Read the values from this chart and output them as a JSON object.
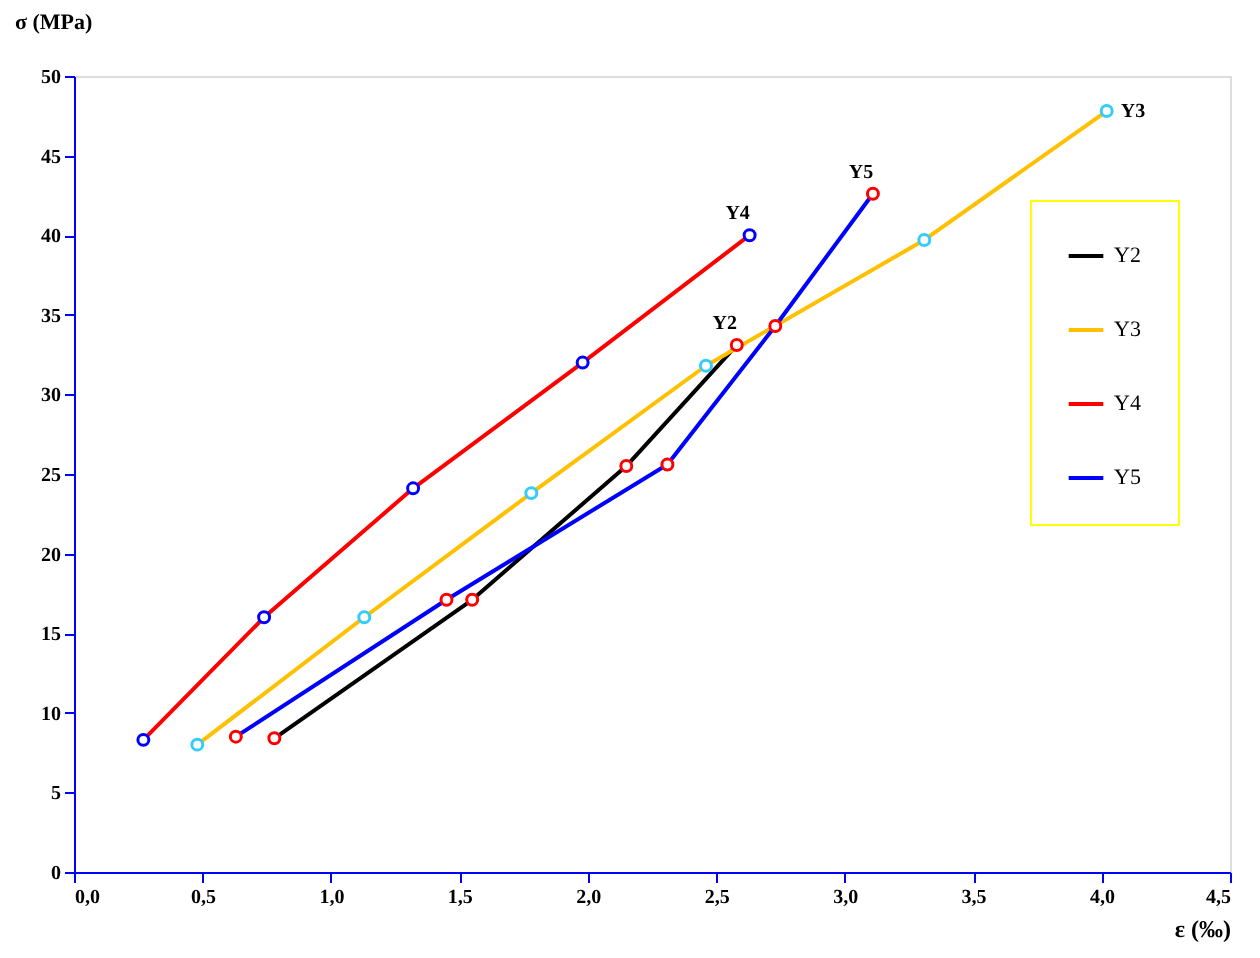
{
  "chart_data": {
    "type": "line",
    "ylabel": "σ (MPa)",
    "xlabel": "ε (‰)",
    "series": [
      {
        "name": "Y2",
        "color": "#000000",
        "colors": [
          "#ff0000",
          "#ff0000",
          "#ff0000",
          "#ff0000"
        ],
        "x": [
          0.78,
          1.55,
          2.15,
          2.58
        ],
        "values": [
          8.4,
          17.1,
          25.5,
          33.1
        ]
      },
      {
        "name": "Y3",
        "color": "#ffc000",
        "colors": [
          "#33ccff",
          "#33ccff",
          "#33ccff",
          "#33ccff",
          "#33ccff",
          "#33ccff"
        ],
        "x": [
          0.48,
          1.13,
          1.78,
          2.46,
          3.31,
          4.02
        ],
        "values": [
          8.0,
          16.0,
          23.8,
          31.8,
          39.7,
          47.8
        ]
      },
      {
        "name": "Y4",
        "color": "#ff0000",
        "colors": [
          "#0000ff",
          "#0000ff",
          "#0000ff",
          "#0000ff",
          "#0000ff"
        ],
        "x": [
          0.27,
          0.74,
          1.32,
          1.98,
          2.63
        ],
        "values": [
          8.3,
          16.0,
          24.1,
          32.0,
          40.0
        ]
      },
      {
        "name": "Y5",
        "color": "#0000ff",
        "colors": [
          "#ff0000",
          "#ff0000",
          "#ff0000",
          "#ff0000",
          "#ff0000"
        ],
        "x": [
          0.63,
          1.45,
          2.31,
          2.73,
          3.11
        ],
        "values": [
          8.5,
          17.1,
          25.6,
          34.3,
          42.6
        ]
      }
    ],
    "annotations": [
      {
        "text": "Y4",
        "x": 2.63,
        "y": 40.0
      },
      {
        "text": "Y2",
        "x": 2.58,
        "y": 33.1
      },
      {
        "text": "Y5",
        "x": 3.11,
        "y": 42.6
      },
      {
        "text": "Y3",
        "x": 4.02,
        "y": 47.8
      }
    ],
    "xlim": [
      0,
      4.5
    ],
    "ylim": [
      0,
      50
    ],
    "xticks": [
      {
        "value": 0,
        "label": "0,0"
      },
      {
        "value": 0.5,
        "label": "0,5"
      },
      {
        "value": 1,
        "label": "1,0"
      },
      {
        "value": 1.5,
        "label": "1,5"
      },
      {
        "value": 2,
        "label": "2,0"
      },
      {
        "value": 2.5,
        "label": "2,5"
      },
      {
        "value": 3,
        "label": "3,0"
      },
      {
        "value": 3.5,
        "label": "3,5"
      },
      {
        "value": 4,
        "label": "4,0"
      },
      {
        "value": 4.5,
        "label": "4,5"
      }
    ],
    "yticks": [
      0,
      5,
      10,
      15,
      20,
      25,
      30,
      35,
      40,
      45,
      50
    ],
    "marker": "circle",
    "grid": false,
    "legend": "top right"
  }
}
